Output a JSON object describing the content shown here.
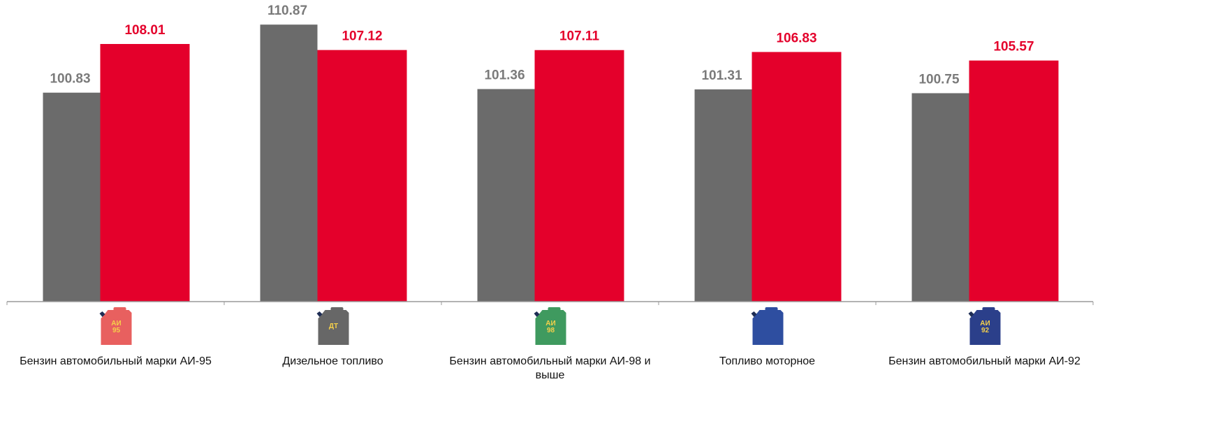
{
  "chart_data": {
    "type": "bar",
    "categories": [
      "Бензин автомобильный марки АИ-95",
      "Дизельное топливо",
      "Бензин автомобильный марки АИ-98 и выше",
      "Топливо моторное",
      "Бензин автомобильный марки АИ-92"
    ],
    "series": [
      {
        "color": "#6b6b6b",
        "values": [
          100.83,
          110.87,
          101.36,
          101.31,
          100.75
        ]
      },
      {
        "color": "#e4002b",
        "values": [
          108.01,
          107.12,
          107.11,
          106.83,
          105.57
        ]
      }
    ],
    "ylim": [
      70,
      114.5
    ],
    "icons": [
      {
        "color": "#e8605f",
        "lines": [
          "АИ",
          "95"
        ]
      },
      {
        "color": "#676767",
        "lines": [
          "ДТ"
        ]
      },
      {
        "color": "#3f9a5f",
        "lines": [
          "АИ",
          "98"
        ]
      },
      {
        "color": "#2e4ea0",
        "lines": []
      },
      {
        "color": "#2b3f8a",
        "lines": [
          "АИ",
          "92"
        ]
      }
    ]
  }
}
